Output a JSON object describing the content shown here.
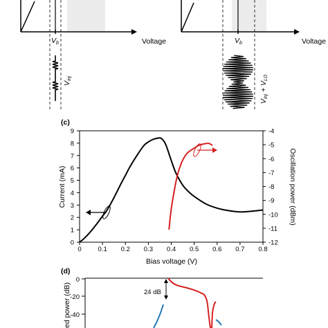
{
  "top_panels": {
    "left": {
      "xlabel": "Voltage",
      "bias_label": "V",
      "bias_sub": "b",
      "signal_label": "V",
      "signal_sub": "inj"
    },
    "right": {
      "xlabel": "Voltage",
      "bias_label": "V",
      "bias_sub": "b",
      "signal_label": "V",
      "signal_sub": "inj",
      "signal_plus": " + V",
      "signal_sub2": "LO"
    }
  },
  "panel_c": {
    "label": "(c)",
    "chart_data": {
      "type": "line",
      "xlabel": "Bias voltage (V)",
      "ylabel": "Current (mA)",
      "y2label": "Oscillation power (dBm)",
      "xlim": [
        0,
        0.8
      ],
      "ylim": [
        0,
        9
      ],
      "y2lim": [
        -12,
        -4
      ],
      "x_ticks": [
        "0",
        "0.1",
        "0.2",
        "0.3",
        "0.4",
        "0.5",
        "0.6",
        "0.7",
        "0.8"
      ],
      "y_ticks": [
        "0",
        "1",
        "2",
        "3",
        "4",
        "5",
        "6",
        "7",
        "8",
        "9"
      ],
      "y2_ticks": [
        "-4",
        "-5",
        "-6",
        "-7",
        "-8",
        "-9",
        "-10",
        "-11",
        "-12"
      ],
      "series": [
        {
          "axis": "left",
          "color": "#000000",
          "x": [
            0,
            0.02,
            0.05,
            0.08,
            0.1,
            0.12,
            0.15,
            0.18,
            0.2,
            0.22,
            0.25,
            0.28,
            0.3,
            0.32,
            0.34,
            0.355,
            0.37,
            0.38,
            0.4,
            0.42,
            0.45,
            0.48,
            0.5,
            0.55,
            0.6,
            0.65,
            0.7,
            0.75,
            0.8
          ],
          "y": [
            0,
            0.3,
            0.9,
            1.6,
            2.1,
            2.6,
            3.6,
            4.7,
            5.4,
            6.1,
            7.0,
            7.8,
            8.1,
            8.3,
            8.4,
            8.4,
            8.1,
            7.7,
            6.6,
            5.6,
            4.6,
            4.0,
            3.7,
            3.1,
            2.75,
            2.55,
            2.45,
            2.5,
            2.6
          ]
        },
        {
          "axis": "right",
          "color": "#d62020",
          "x": [
            0.39,
            0.395,
            0.4,
            0.41,
            0.42,
            0.43,
            0.44,
            0.45,
            0.47,
            0.5,
            0.52,
            0.54,
            0.56,
            0.57,
            0.58
          ],
          "y": [
            -11.1,
            -10.3,
            -9.6,
            -8.6,
            -7.7,
            -7.0,
            -6.5,
            -6.1,
            -5.6,
            -5.25,
            -5.05,
            -4.95,
            -4.9,
            -4.95,
            -5.05
          ]
        }
      ]
    }
  },
  "panel_d": {
    "label": "(d)",
    "ylabel_partial": "ed power (dB)",
    "y_ticks": [
      "0",
      "-20",
      "-40"
    ],
    "annotation": "24 dB"
  }
}
